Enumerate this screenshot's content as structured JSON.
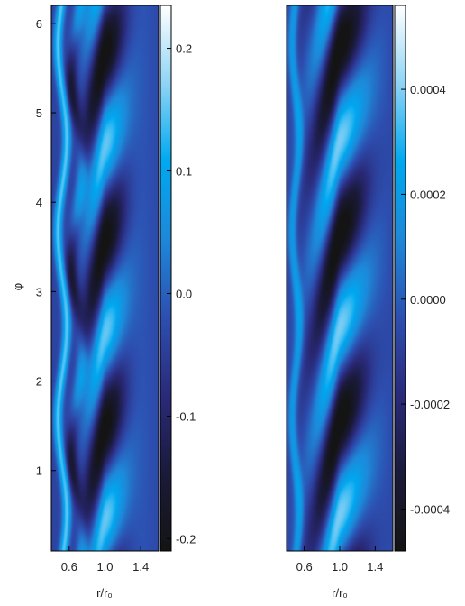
{
  "chart_data": [
    {
      "type": "heatmap",
      "title": "",
      "xlabel": "r/r₀",
      "ylabel": "φ",
      "xlim": [
        0.4,
        1.6
      ],
      "ylim": [
        0.1,
        6.2
      ],
      "x_ticks": [
        0.6,
        1.0,
        1.4
      ],
      "x_tick_labels": [
        "0.6",
        "1.0",
        "1.4"
      ],
      "y_ticks": [
        1,
        2,
        3,
        4,
        5,
        6
      ],
      "y_tick_labels": [
        "1",
        "2",
        "3",
        "4",
        "5",
        "6"
      ],
      "colorbar": {
        "range": [
          -0.21,
          0.235
        ],
        "ticks": [
          -0.2,
          -0.1,
          0.0,
          0.1,
          0.2
        ],
        "tick_labels": [
          "-0.2",
          "-0.1",
          "0.0",
          "0.1",
          "0.2"
        ]
      },
      "pattern": {
        "azimuthal_mode": 3,
        "ring_center_r": 1.0,
        "inner_arm_r": 0.5,
        "max_phi": [
          0.8,
          2.9,
          5.0
        ],
        "min_phi": [
          1.45,
          3.55,
          5.65
        ]
      }
    },
    {
      "type": "heatmap",
      "title": "",
      "xlabel": "r/r₀",
      "ylabel": "",
      "xlim": [
        0.4,
        1.6
      ],
      "ylim": [
        0.1,
        6.2
      ],
      "x_ticks": [
        0.6,
        1.0,
        1.4
      ],
      "x_tick_labels": [
        "0.6",
        "1.0",
        "1.4"
      ],
      "colorbar": {
        "range": [
          -0.00048,
          0.00056
        ],
        "ticks": [
          -0.0004,
          -0.0002,
          0.0,
          0.0002,
          0.0004
        ],
        "tick_labels": [
          "-0.0004",
          "-0.0002",
          "0.0000",
          "0.0002",
          "0.0004"
        ]
      },
      "pattern": {
        "azimuthal_mode": 3,
        "ring_center_r": 1.0,
        "inner_arm_r": 0.5,
        "max_phi": [
          0.9,
          3.0,
          5.1
        ],
        "min_phi": [
          0.0,
          2.0,
          4.1,
          6.2
        ]
      }
    }
  ],
  "colors": {
    "colormap": [
      "#141414",
      "#1a1a3a",
      "#2a2a7a",
      "#2d4fb0",
      "#1e88d8",
      "#00a8f0",
      "#8fd4f5",
      "#ffffff"
    ]
  }
}
